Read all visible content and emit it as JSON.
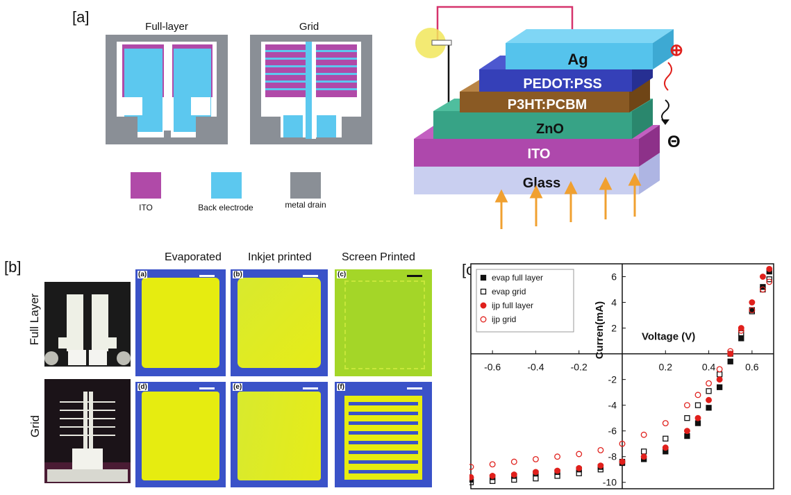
{
  "panel_a": {
    "label": "[a]",
    "layout_titles": [
      "Full-layer",
      "Grid"
    ],
    "legend": [
      {
        "label": "ITO",
        "color": "#b04aa8"
      },
      {
        "label": "Back electrode",
        "color": "#5cc8ef"
      },
      {
        "label": "metal drain",
        "color": "#8a8f96"
      }
    ],
    "stack_layers": [
      "Ag",
      "PEDOT:PSS",
      "P3HT:PCBM",
      "ZnO",
      "ITO",
      "Glass"
    ],
    "plus_sign": "⊕",
    "minus_sign": "Θ"
  },
  "panel_b": {
    "label": "[b]",
    "columns": [
      "Evaporated",
      "Inkjet printed",
      "Screen Printed"
    ],
    "rows": [
      "Full Layer",
      "Grid"
    ],
    "tile_labels": [
      "(a)",
      "(b)",
      "(c)",
      "(d)",
      "(e)",
      "(f)"
    ]
  },
  "panel_c": {
    "label": "[c]"
  },
  "chart_data": {
    "type": "scatter",
    "xlabel": "Voltage (V)",
    "ylabel": "Curren(mA)",
    "xlim": [
      -0.7,
      0.7
    ],
    "ylim": [
      -10.5,
      7
    ],
    "xticks": [
      "-0.6",
      "-0.4",
      "-0.2",
      "0.2",
      "0.4",
      "0.6"
    ],
    "xtick_values": [
      -0.6,
      -0.4,
      -0.2,
      0.2,
      0.4,
      0.6
    ],
    "yticks": [
      "6",
      "4",
      "2",
      "-2",
      "-4",
      "-6",
      "-8",
      "-10"
    ],
    "ytick_values": [
      6,
      4,
      2,
      -2,
      -4,
      -6,
      -8,
      -10
    ],
    "legend_position": "top-left",
    "series": [
      {
        "name": "evap full layer",
        "color": "#111111",
        "marker": "square-filled",
        "x": [
          -0.7,
          -0.6,
          -0.5,
          -0.4,
          -0.3,
          -0.2,
          -0.1,
          0.0,
          0.1,
          0.2,
          0.3,
          0.35,
          0.4,
          0.45,
          0.5,
          0.55,
          0.6,
          0.65,
          0.68
        ],
        "y": [
          -9.8,
          -9.6,
          -9.5,
          -9.3,
          -9.2,
          -9.0,
          -8.8,
          -8.5,
          -8.2,
          -7.6,
          -6.4,
          -5.4,
          -4.2,
          -2.6,
          -0.6,
          1.2,
          3.4,
          5.2,
          6.4
        ]
      },
      {
        "name": "evap grid",
        "color": "#111111",
        "marker": "square-open",
        "x": [
          -0.7,
          -0.6,
          -0.5,
          -0.4,
          -0.3,
          -0.2,
          -0.1,
          0.0,
          0.1,
          0.2,
          0.3,
          0.35,
          0.4,
          0.45,
          0.5,
          0.55,
          0.6,
          0.65,
          0.68
        ],
        "y": [
          -10.0,
          -9.9,
          -9.8,
          -9.7,
          -9.5,
          -9.3,
          -9.0,
          -8.4,
          -7.6,
          -6.6,
          -5.0,
          -4.0,
          -2.9,
          -1.6,
          0.0,
          1.6,
          3.3,
          5.0,
          5.8
        ]
      },
      {
        "name": "ijp full layer",
        "color": "#e0201c",
        "marker": "circle-filled",
        "x": [
          -0.7,
          -0.6,
          -0.5,
          -0.4,
          -0.3,
          -0.2,
          -0.1,
          0.0,
          0.1,
          0.2,
          0.3,
          0.35,
          0.4,
          0.45,
          0.5,
          0.55,
          0.6,
          0.65,
          0.68
        ],
        "y": [
          -9.6,
          -9.5,
          -9.4,
          -9.2,
          -9.1,
          -8.9,
          -8.7,
          -8.4,
          -8.0,
          -7.3,
          -6.0,
          -5.0,
          -3.6,
          -2.0,
          0.0,
          2.0,
          4.0,
          6.0,
          6.6
        ]
      },
      {
        "name": "ijp grid",
        "color": "#e0201c",
        "marker": "circle-open",
        "x": [
          -0.7,
          -0.6,
          -0.5,
          -0.4,
          -0.3,
          -0.2,
          -0.1,
          0.0,
          0.1,
          0.2,
          0.3,
          0.35,
          0.4,
          0.45,
          0.5,
          0.55,
          0.6,
          0.65,
          0.68
        ],
        "y": [
          -8.8,
          -8.6,
          -8.4,
          -8.2,
          -8.0,
          -7.8,
          -7.5,
          -7.0,
          -6.3,
          -5.4,
          -4.0,
          -3.2,
          -2.3,
          -1.2,
          0.2,
          1.8,
          3.4,
          5.0,
          5.6
        ]
      }
    ]
  }
}
